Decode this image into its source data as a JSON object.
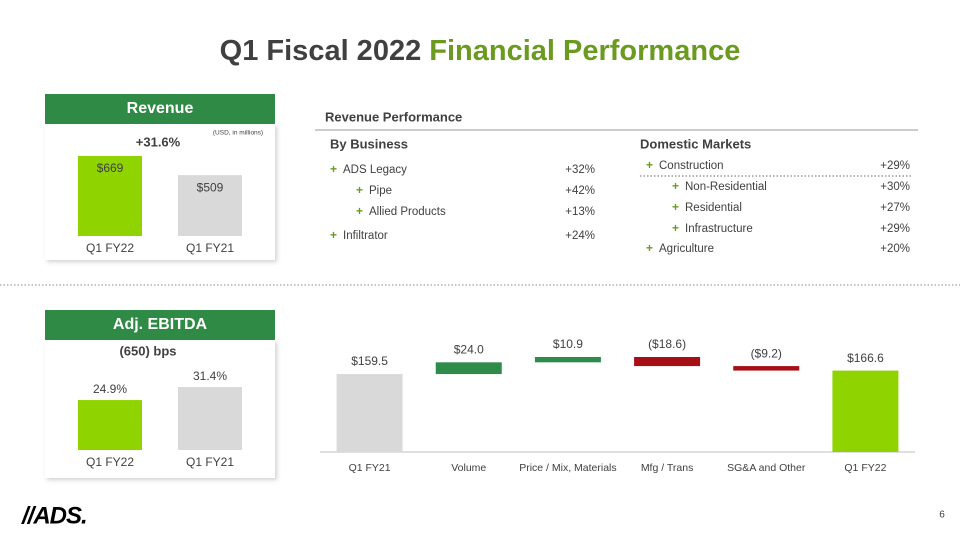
{
  "title": {
    "main": "Q1 Fiscal 2022",
    "highlight": "Financial Performance"
  },
  "chart_data": [
    {
      "type": "bar",
      "title": "Revenue",
      "annotation": "+31.6%",
      "note": "(USD, in millions)",
      "categories": [
        "Q1 FY22",
        "Q1 FY21"
      ],
      "values": [
        669,
        509
      ],
      "value_labels": [
        "$669",
        "$509"
      ],
      "colors": [
        "#8fd400",
        "#d9d9d9"
      ]
    },
    {
      "type": "bar",
      "title": "Adj. EBITDA",
      "annotation": "(650) bps",
      "categories": [
        "Q1 FY22",
        "Q1 FY21"
      ],
      "values": [
        24.9,
        31.4
      ],
      "value_labels": [
        "24.9%",
        "31.4%"
      ],
      "colors": [
        "#8fd400",
        "#d9d9d9"
      ]
    },
    {
      "type": "waterfall",
      "categories": [
        "Q1 FY21",
        "Volume",
        "Price / Mix, Materials",
        "Mfg / Trans",
        "SG&A and Other",
        "Q1 FY22"
      ],
      "values": [
        159.5,
        24.0,
        10.9,
        -18.6,
        -9.2,
        166.6
      ],
      "value_labels": [
        "$159.5",
        "$24.0",
        "$10.9",
        "($18.6)",
        "($9.2)",
        "$166.6"
      ],
      "measures": [
        "absolute",
        "relative",
        "relative",
        "relative",
        "relative",
        "total"
      ],
      "colors": {
        "start": "#d9d9d9",
        "increase": "#2e8b4a",
        "decrease": "#a50f15",
        "total": "#8fd400"
      }
    }
  ],
  "revenue_performance": {
    "title": "Revenue Performance",
    "by_business": {
      "heading": "By Business",
      "rows": [
        {
          "label": "ADS Legacy",
          "value": "+32%",
          "level": 0
        },
        {
          "label": "Pipe",
          "value": "+42%",
          "level": 1
        },
        {
          "label": "Allied Products",
          "value": "+13%",
          "level": 1
        },
        {
          "label": "Infiltrator",
          "value": "+24%",
          "level": 0
        }
      ]
    },
    "domestic_markets": {
      "heading": "Domestic Markets",
      "rows": [
        {
          "label": "Construction",
          "value": "+29%",
          "level": 0
        },
        {
          "label": "Non-Residential",
          "value": "+30%",
          "level": 1
        },
        {
          "label": "Residential",
          "value": "+27%",
          "level": 1
        },
        {
          "label": "Infrastructure",
          "value": "+29%",
          "level": 1
        },
        {
          "label": "Agriculture",
          "value": "+20%",
          "level": 0
        }
      ]
    }
  },
  "logo": "//ADS.",
  "page_number": "6"
}
